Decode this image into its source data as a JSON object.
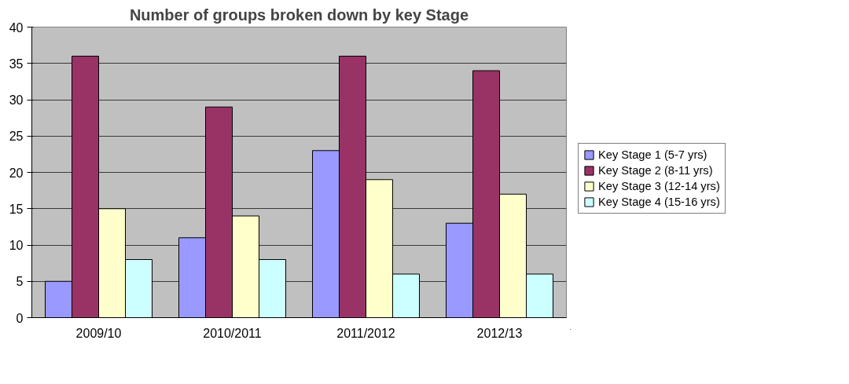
{
  "chart_data": {
    "type": "bar",
    "title": "Number of groups broken down by key Stage",
    "categories": [
      "2009/10",
      "2010/2011",
      "2011/2012",
      "2012/13"
    ],
    "series": [
      {
        "name": "Key Stage 1 (5-7 yrs)",
        "color": "#9999ff",
        "values": [
          5,
          11,
          23,
          13
        ]
      },
      {
        "name": "Key Stage 2 (8-11 yrs)",
        "color": "#993366",
        "values": [
          36,
          29,
          36,
          34
        ]
      },
      {
        "name": "Key Stage 3 (12-14 yrs)",
        "color": "#ffffcc",
        "values": [
          15,
          14,
          19,
          17
        ]
      },
      {
        "name": "Key Stage 4 (15-16 yrs)",
        "color": "#ccffff",
        "values": [
          8,
          8,
          6,
          6
        ]
      }
    ],
    "ylim": [
      0,
      40
    ],
    "yticks": [
      0,
      5,
      10,
      15,
      20,
      25,
      30,
      35,
      40
    ],
    "grid": "y",
    "legend": "right"
  }
}
